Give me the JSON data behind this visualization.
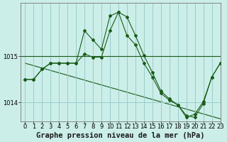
{
  "title": "Graphe pression niveau de la mer (hPa)",
  "background_color": "#cceee8",
  "grid_color": "#99cccc",
  "line_color": "#1a5c1a",
  "xlim": [
    -0.5,
    23
  ],
  "ylim": [
    1013.6,
    1016.15
  ],
  "yticks": [
    1014,
    1015
  ],
  "xticks": [
    0,
    1,
    2,
    3,
    4,
    5,
    6,
    7,
    8,
    9,
    10,
    11,
    12,
    13,
    14,
    15,
    16,
    17,
    18,
    19,
    20,
    21,
    22,
    23
  ],
  "series1_x": [
    0,
    1,
    2,
    3,
    4,
    5,
    6,
    7,
    8,
    9,
    10,
    11,
    12,
    13,
    14,
    15,
    16,
    17,
    18,
    19,
    20,
    21,
    22,
    23
  ],
  "series1_y": [
    1014.5,
    1014.5,
    1014.72,
    1014.85,
    1014.85,
    1014.85,
    1014.85,
    1015.55,
    1015.35,
    1015.15,
    1015.87,
    1015.95,
    1015.45,
    1015.25,
    1014.85,
    1014.55,
    1014.2,
    1014.05,
    1013.95,
    1013.68,
    1013.75,
    1014.02,
    1014.55,
    1014.85
  ],
  "series2_x": [
    0,
    1,
    2,
    3,
    4,
    5,
    6,
    7,
    8,
    9,
    10,
    11,
    12,
    13,
    14,
    15,
    16,
    17,
    18,
    19,
    20,
    21,
    22,
    23
  ],
  "series2_y": [
    1014.5,
    1014.5,
    1014.72,
    1014.85,
    1014.85,
    1014.85,
    1014.85,
    1015.05,
    1014.98,
    1014.98,
    1015.55,
    1015.95,
    1015.85,
    1015.45,
    1015.02,
    1014.65,
    1014.25,
    1014.08,
    1013.95,
    1013.72,
    1013.68,
    1013.98,
    1014.55,
    1014.85
  ],
  "trend_x": [
    0,
    23
  ],
  "trend_y": [
    1014.85,
    1013.65
  ],
  "hline_y": 1015.0,
  "marker_size": 2.0,
  "title_fontsize": 7.5,
  "tick_fontsize": 6.0
}
